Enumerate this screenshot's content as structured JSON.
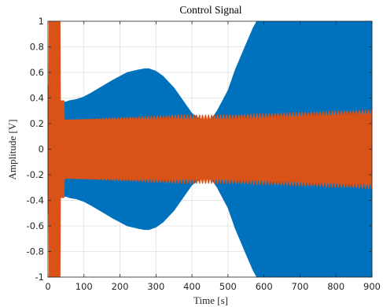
{
  "chart_data": {
    "type": "area",
    "title": "Control Signal",
    "xlabel": "Time [s]",
    "ylabel": "Amplitude [V]",
    "xlim": [
      0,
      900
    ],
    "ylim": [
      -1,
      1
    ],
    "xticks": [
      0,
      100,
      200,
      300,
      400,
      500,
      600,
      700,
      800,
      900
    ],
    "yticks": [
      -1,
      -0.8,
      -0.6,
      -0.4,
      -0.2,
      0,
      0.2,
      0.4,
      0.6,
      0.8,
      1
    ],
    "xtick_labels": [
      "0",
      "100",
      "200",
      "300",
      "400",
      "500",
      "600",
      "700",
      "800",
      "900"
    ],
    "ytick_labels": [
      "-1",
      "-0.8",
      "-0.6",
      "-0.4",
      "-0.2",
      "0",
      "0.2",
      "0.4",
      "0.6",
      "0.8",
      "1"
    ],
    "grid": true,
    "series": [
      {
        "color": "#0072BD",
        "envelope": {
          "x": [
            0,
            3,
            5,
            10,
            20,
            35,
            36,
            45,
            46,
            50,
            60,
            80,
            100,
            120,
            150,
            180,
            200,
            220,
            250,
            270,
            280,
            300,
            320,
            350,
            380,
            400,
            420,
            435,
            445,
            455,
            470,
            500,
            520,
            550,
            570,
            580,
            600,
            650,
            700,
            750,
            800,
            850,
            900
          ],
          "upper": [
            0.35,
            0.35,
            0.23,
            0.23,
            0.23,
            0.23,
            0.38,
            0.37,
            0.37,
            0.37,
            0.38,
            0.39,
            0.41,
            0.44,
            0.49,
            0.54,
            0.57,
            0.6,
            0.62,
            0.63,
            0.63,
            0.61,
            0.57,
            0.48,
            0.36,
            0.28,
            0.24,
            0.23,
            0.23,
            0.24,
            0.3,
            0.46,
            0.62,
            0.82,
            0.95,
            1.0,
            1.0,
            1.0,
            1.0,
            1.0,
            1.0,
            1.0,
            1.0
          ],
          "lower": [
            -0.35,
            -0.35,
            -0.23,
            -0.23,
            -0.23,
            -0.23,
            -0.38,
            -0.37,
            -0.37,
            -0.37,
            -0.38,
            -0.39,
            -0.41,
            -0.44,
            -0.49,
            -0.54,
            -0.57,
            -0.6,
            -0.62,
            -0.63,
            -0.63,
            -0.61,
            -0.57,
            -0.48,
            -0.36,
            -0.28,
            -0.24,
            -0.23,
            -0.23,
            -0.24,
            -0.3,
            -0.46,
            -0.62,
            -0.82,
            -0.95,
            -1.0,
            -1.0,
            -1.0,
            -1.0,
            -1.0,
            -1.0,
            -1.0,
            -1.0
          ]
        }
      },
      {
        "color": "#D95319",
        "envelope": {
          "x": [
            0,
            2,
            3,
            34,
            35,
            36,
            45,
            46,
            47,
            100,
            200,
            300,
            400,
            450,
            500,
            600,
            700,
            800,
            900
          ],
          "upper": [
            0.5,
            0.5,
            1.0,
            1.0,
            0.38,
            0.38,
            0.38,
            0.23,
            0.23,
            0.23,
            0.23,
            0.23,
            0.23,
            0.23,
            0.23,
            0.24,
            0.25,
            0.26,
            0.27
          ],
          "lower": [
            -0.5,
            -0.5,
            -1.0,
            -1.0,
            -0.38,
            -0.38,
            -0.38,
            -0.23,
            -0.23,
            -0.23,
            -0.23,
            -0.23,
            -0.23,
            -0.23,
            -0.23,
            -0.24,
            -0.25,
            -0.26,
            -0.27
          ]
        },
        "ripple": 0.04
      }
    ]
  }
}
